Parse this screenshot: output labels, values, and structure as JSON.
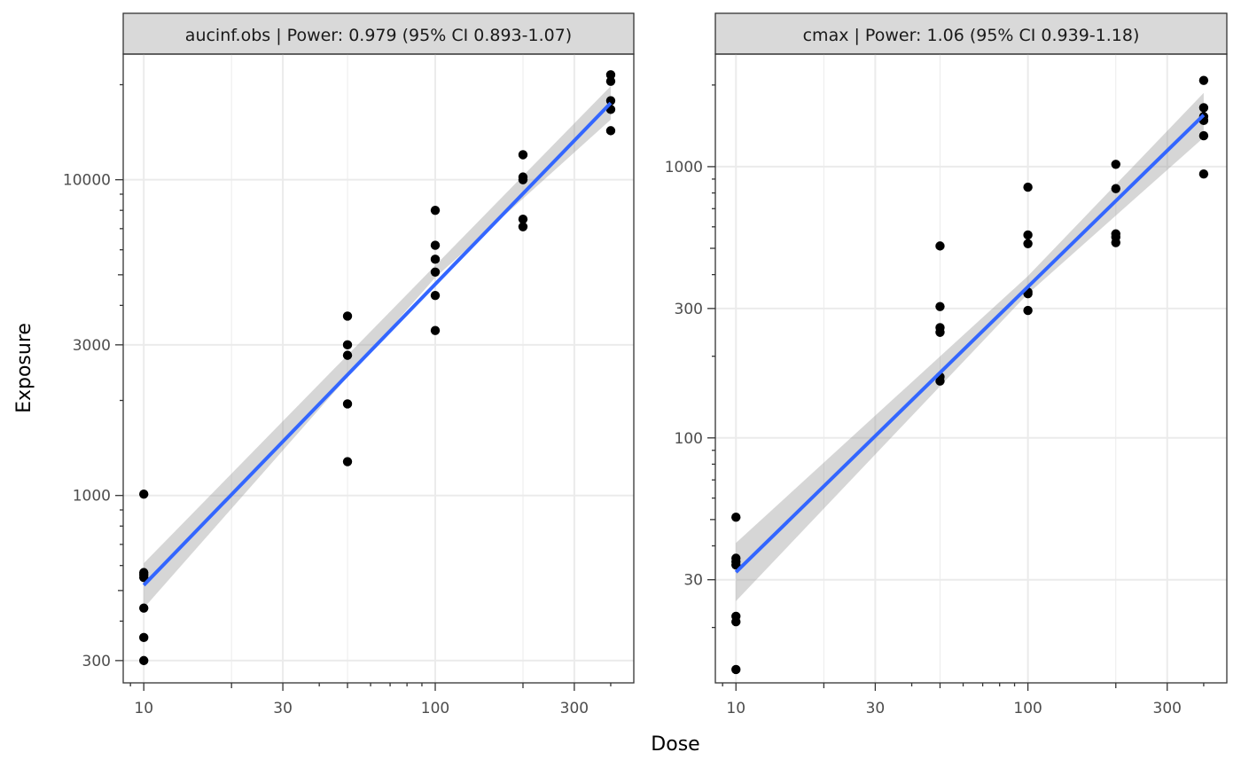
{
  "chart_data": {
    "type": "scatter",
    "xlabel": "Dose",
    "ylabel": "Exposure",
    "x_scale": "log10",
    "y_scale": "log10",
    "grid": true,
    "colors": {
      "points": "#000000",
      "fit_line": "#3366FF",
      "ci_band": "#999999",
      "strip_bg": "#d9d9d9",
      "grid": "#ebebeb"
    },
    "panels": [
      {
        "strip": "aucinf.obs | Power: 0.979 (95% CI 0.893-1.07)",
        "xlim": [
          8.5,
          480
        ],
        "ylim": [
          255,
          25000
        ],
        "x_ticks": [
          10,
          30,
          100,
          300
        ],
        "x_tick_labels": [
          "10",
          "30",
          "100",
          "300"
        ],
        "y_ticks": [
          300,
          1000,
          3000,
          10000
        ],
        "y_tick_labels": [
          "300",
          "1000",
          "3000",
          "10000"
        ],
        "points": [
          {
            "x": 10,
            "y": 1010
          },
          {
            "x": 10,
            "y": 570
          },
          {
            "x": 10,
            "y": 560
          },
          {
            "x": 10,
            "y": 550
          },
          {
            "x": 10,
            "y": 440
          },
          {
            "x": 10,
            "y": 355
          },
          {
            "x": 10,
            "y": 300
          },
          {
            "x": 50,
            "y": 3700
          },
          {
            "x": 50,
            "y": 3000
          },
          {
            "x": 50,
            "y": 2780
          },
          {
            "x": 50,
            "y": 1950
          },
          {
            "x": 50,
            "y": 1280
          },
          {
            "x": 100,
            "y": 8000
          },
          {
            "x": 100,
            "y": 6200
          },
          {
            "x": 100,
            "y": 5600
          },
          {
            "x": 100,
            "y": 5100
          },
          {
            "x": 100,
            "y": 4300
          },
          {
            "x": 100,
            "y": 3330
          },
          {
            "x": 200,
            "y": 12000
          },
          {
            "x": 200,
            "y": 10200
          },
          {
            "x": 200,
            "y": 10000
          },
          {
            "x": 200,
            "y": 7500
          },
          {
            "x": 200,
            "y": 7100
          },
          {
            "x": 400,
            "y": 21500
          },
          {
            "x": 400,
            "y": 20500
          },
          {
            "x": 400,
            "y": 17800
          },
          {
            "x": 400,
            "y": 16700
          },
          {
            "x": 400,
            "y": 14300
          }
        ],
        "fit": {
          "x": [
            10,
            400
          ],
          "y": [
            520,
            17500
          ]
        },
        "ci_lower": {
          "x": [
            10,
            100,
            400
          ],
          "y": [
            440,
            4900,
            15500
          ]
        },
        "ci_upper": {
          "x": [
            10,
            100,
            400
          ],
          "y": [
            610,
            5350,
            19800
          ]
        }
      },
      {
        "strip": "cmax | Power: 1.06 (95% CI 0.939-1.18)",
        "xlim": [
          8.5,
          480
        ],
        "ylim": [
          12.5,
          2600
        ],
        "x_ticks": [
          10,
          30,
          100,
          300
        ],
        "x_tick_labels": [
          "10",
          "30",
          "100",
          "300"
        ],
        "y_ticks": [
          30,
          100,
          300,
          1000
        ],
        "y_tick_labels": [
          "30",
          "100",
          "300",
          "1000"
        ],
        "points": [
          {
            "x": 10,
            "y": 51
          },
          {
            "x": 10,
            "y": 36
          },
          {
            "x": 10,
            "y": 35
          },
          {
            "x": 10,
            "y": 34
          },
          {
            "x": 10,
            "y": 22
          },
          {
            "x": 10,
            "y": 21
          },
          {
            "x": 10,
            "y": 14
          },
          {
            "x": 50,
            "y": 510
          },
          {
            "x": 50,
            "y": 305
          },
          {
            "x": 50,
            "y": 255
          },
          {
            "x": 50,
            "y": 245
          },
          {
            "x": 50,
            "y": 168
          },
          {
            "x": 50,
            "y": 162
          },
          {
            "x": 100,
            "y": 840
          },
          {
            "x": 100,
            "y": 560
          },
          {
            "x": 100,
            "y": 520
          },
          {
            "x": 100,
            "y": 345
          },
          {
            "x": 100,
            "y": 340
          },
          {
            "x": 100,
            "y": 295
          },
          {
            "x": 200,
            "y": 1020
          },
          {
            "x": 200,
            "y": 830
          },
          {
            "x": 200,
            "y": 565
          },
          {
            "x": 200,
            "y": 550
          },
          {
            "x": 200,
            "y": 525
          },
          {
            "x": 400,
            "y": 2080
          },
          {
            "x": 400,
            "y": 1650
          },
          {
            "x": 400,
            "y": 1530
          },
          {
            "x": 400,
            "y": 1480
          },
          {
            "x": 400,
            "y": 1300
          },
          {
            "x": 400,
            "y": 940
          }
        ],
        "fit": {
          "x": [
            10,
            400
          ],
          "y": [
            32,
            1550
          ]
        },
        "ci_lower": {
          "x": [
            10,
            100,
            400
          ],
          "y": [
            25,
            340,
            1280
          ]
        },
        "ci_upper": {
          "x": [
            10,
            100,
            400
          ],
          "y": [
            41,
            395,
            1870
          ]
        }
      }
    ]
  }
}
